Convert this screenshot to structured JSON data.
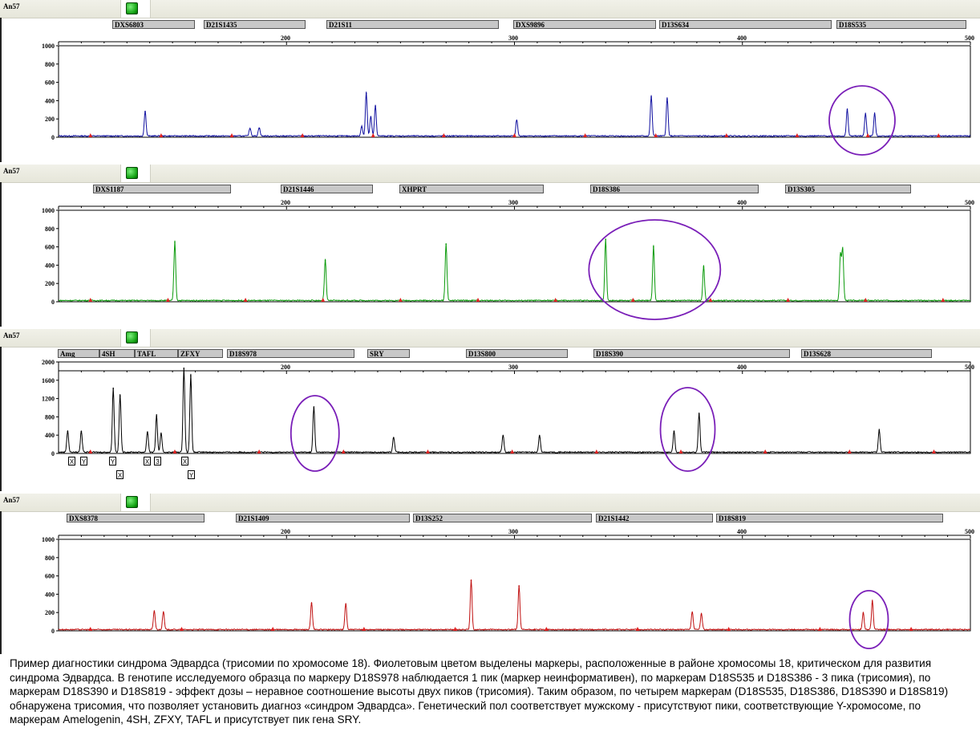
{
  "panels": [
    {
      "id": "p1",
      "label": "An57",
      "markers": [
        "DXS6803",
        "D21S1435",
        "D21S11",
        "DXS9896",
        "D13S634",
        "D18S535"
      ],
      "top_axis_labels": [
        "200",
        "300",
        "400",
        "500"
      ],
      "y_ticks": [
        "1000",
        "800",
        "600",
        "400",
        "200",
        "0"
      ],
      "color": "#1010a0"
    },
    {
      "id": "p2",
      "label": "An57",
      "markers": [
        "DXS1187",
        "D21S1446",
        "XHPRT",
        "D18S386",
        "D13S305"
      ],
      "top_axis_labels": [
        "200",
        "300",
        "400",
        "500"
      ],
      "y_ticks": [
        "1000",
        "800",
        "600",
        "400",
        "200",
        "0"
      ],
      "color": "#0a9a0a"
    },
    {
      "id": "p3",
      "label": "An57",
      "markers": [
        "Amg",
        "4SH",
        "TAFL",
        "ZFXY",
        "D18S978",
        "SRY",
        "D13S800",
        "D18S390",
        "D13S628"
      ],
      "top_axis_labels": [
        "200",
        "300",
        "400",
        "500"
      ],
      "y_ticks": [
        "2000",
        "1600",
        "1200",
        "800",
        "400",
        "0"
      ],
      "color": "#000000",
      "allele_labels": [
        "X",
        "Y",
        "Y",
        "X",
        "X",
        "3",
        "X",
        "Y"
      ]
    },
    {
      "id": "p4",
      "label": "An57",
      "markers": [
        "DXS8378",
        "D21S1409",
        "D13S252",
        "D21S1442",
        "D18S819"
      ],
      "top_axis_labels": [
        "200",
        "300",
        "400",
        "500"
      ],
      "y_ticks": [
        "1000",
        "800",
        "600",
        "400",
        "200",
        "0"
      ],
      "color": "#c01010"
    }
  ],
  "chart_data": [
    {
      "type": "line",
      "panel": "p1",
      "xlim": [
        100,
        500
      ],
      "ylim": [
        0,
        1000
      ],
      "series": [
        {
          "color": "#1010a0",
          "peaks": [
            [
              138,
              280
            ],
            [
              184,
              90
            ],
            [
              188,
              95
            ],
            [
              233,
              110
            ],
            [
              235,
              480
            ],
            [
              237,
              220
            ],
            [
              239,
              340
            ],
            [
              301,
              180
            ],
            [
              360,
              440
            ],
            [
              367,
              420
            ],
            [
              446,
              300
            ],
            [
              454,
              250
            ],
            [
              458,
              250
            ]
          ]
        }
      ],
      "highlight_regions": [
        [
          440,
          465
        ]
      ]
    },
    {
      "type": "line",
      "panel": "p2",
      "xlim": [
        100,
        500
      ],
      "ylim": [
        0,
        1000
      ],
      "series": [
        {
          "color": "#0a9a0a",
          "peaks": [
            [
              151,
              650
            ],
            [
              217,
              450
            ],
            [
              270,
              630
            ],
            [
              340,
              680
            ],
            [
              361,
              600
            ],
            [
              383,
              380
            ],
            [
              444,
              570
            ],
            [
              443,
              510
            ]
          ]
        }
      ],
      "highlight_regions": [
        [
          335,
          388
        ]
      ]
    },
    {
      "type": "line",
      "panel": "p3",
      "xlim": [
        100,
        500
      ],
      "ylim": [
        0,
        2000
      ],
      "series": [
        {
          "color": "#000000",
          "peaks": [
            [
              104,
              480
            ],
            [
              110,
              480
            ],
            [
              124,
              1420
            ],
            [
              127,
              1260
            ],
            [
              139,
              460
            ],
            [
              143,
              820
            ],
            [
              145,
              420
            ],
            [
              155,
              1860
            ],
            [
              158,
              1700
            ],
            [
              212,
              1000
            ],
            [
              247,
              340
            ],
            [
              295,
              380
            ],
            [
              311,
              380
            ],
            [
              370,
              480
            ],
            [
              381,
              860
            ],
            [
              460,
              500
            ]
          ]
        }
      ],
      "highlight_regions": [
        [
          205,
          220
        ],
        [
          367,
          385
        ]
      ]
    },
    {
      "type": "line",
      "panel": "p4",
      "xlim": [
        100,
        500
      ],
      "ylim": [
        0,
        1000
      ],
      "series": [
        {
          "color": "#c01010",
          "peaks": [
            [
              142,
              210
            ],
            [
              146,
              200
            ],
            [
              211,
              300
            ],
            [
              226,
              290
            ],
            [
              281,
              550
            ],
            [
              302,
              490
            ],
            [
              378,
              200
            ],
            [
              382,
              180
            ],
            [
              453,
              190
            ],
            [
              457,
              320
            ]
          ]
        }
      ],
      "highlight_regions": [
        [
          449,
          462
        ]
      ]
    }
  ],
  "caption": "Пример диагностики синдрома Эдвардса (трисомии по хромосоме 18). Фиолетовым цветом выделены маркеры, расположенные в районе хромосомы 18, критическом для развития синдрома Эдвардса. В генотипе исследуемого образца по маркеру D18S978 наблюдается 1 пик (маркер неинформативен), по маркерам D18S535 и D18S386 - 3 пика (трисомия), по маркерам D18S390 и D18S819 -  эффект дозы – неравное соотношение высоты двух пиков (трисомия). Таким образом, по четырем маркерам (D18S535, D18S386,  D18S390 и D18S819) обнаружена трисомия, что позволяет установить диагноз «синдром Эдвардса». Генетический пол соответствует мужскому -  присутствуют пики, соответствующие Y-хромосоме, по маркерам Amelogenin, 4SH, ZFXY, TAFL и присутствует пик  гена SRY."
}
